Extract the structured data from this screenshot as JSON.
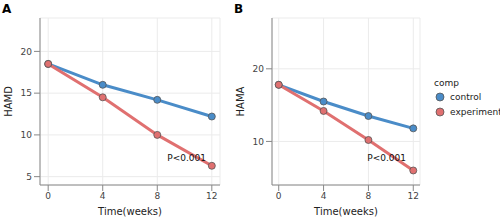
{
  "chart_data": [
    {
      "type": "line",
      "title": "A",
      "xlabel": "Time(weeks)",
      "ylabel": "HAMD",
      "annotation": "P<0.001",
      "x": [
        0,
        4,
        8,
        12
      ],
      "xlim": [
        -0.6,
        12.6
      ],
      "xticks": [
        0,
        4,
        8,
        12
      ],
      "ylim": [
        4,
        24
      ],
      "yticks": [
        5,
        10,
        15,
        20
      ],
      "grid": true,
      "marker": "circle",
      "series": [
        {
          "name": "control",
          "color": "#4a8cc8",
          "values": [
            18.5,
            16.0,
            14.2,
            12.2
          ]
        },
        {
          "name": "experiment",
          "color": "#e07070",
          "values": [
            18.5,
            14.5,
            10.0,
            6.3
          ]
        }
      ]
    },
    {
      "type": "line",
      "title": "B",
      "xlabel": "Time(weeks)",
      "ylabel": "HAMA",
      "annotation": "P<0.001",
      "x": [
        0,
        4,
        8,
        12
      ],
      "xlim": [
        -0.6,
        12.6
      ],
      "xticks": [
        0,
        4,
        8,
        12
      ],
      "ylim": [
        4,
        27
      ],
      "yticks": [
        10,
        20
      ],
      "grid": true,
      "marker": "circle",
      "legend": "right",
      "legend_title": "comp",
      "series": [
        {
          "name": "control",
          "color": "#4a8cc8",
          "values": [
            17.8,
            15.5,
            13.5,
            11.8
          ]
        },
        {
          "name": "experiment",
          "color": "#e07070",
          "values": [
            17.8,
            14.2,
            10.2,
            6.0
          ]
        }
      ]
    }
  ]
}
